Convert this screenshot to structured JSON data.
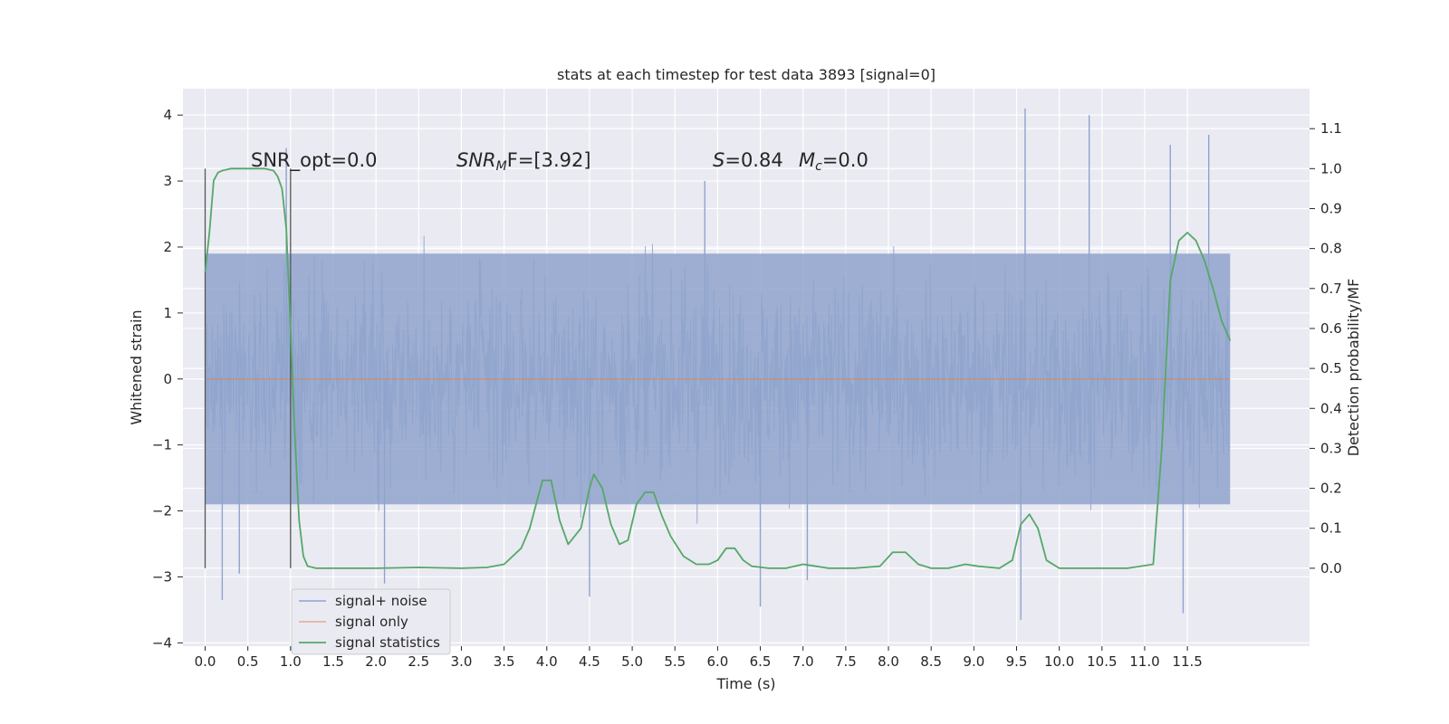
{
  "chart_data": {
    "type": "line",
    "title": "stats at each timestep for test data 3893 [signal=0]",
    "xlabel": "Time (s)",
    "ylabel_left": "Whitened strain",
    "ylabel_right": "Detection probability/MF",
    "xlim": [
      -0.26,
      12.93
    ],
    "ylim_left": [
      -4.05,
      4.4
    ],
    "ylim_right": [
      -0.195,
      1.2
    ],
    "x_ticks": [
      "0.0",
      "0.5",
      "1.0",
      "1.5",
      "2.0",
      "2.5",
      "3.0",
      "3.5",
      "4.0",
      "4.5",
      "5.0",
      "5.5",
      "6.0",
      "6.5",
      "7.0",
      "7.5",
      "8.0",
      "8.5",
      "9.0",
      "9.5",
      "10.0",
      "10.5",
      "11.0",
      "11.5"
    ],
    "y_ticks_left": [
      "−4",
      "−3",
      "−2",
      "−1",
      "0",
      "1",
      "2",
      "3",
      "4"
    ],
    "y_ticks_right": [
      "0.0",
      "0.1",
      "0.2",
      "0.3",
      "0.4",
      "0.5",
      "0.6",
      "0.7",
      "0.8",
      "0.9",
      "1.0",
      "1.1"
    ],
    "annotations": {
      "snr_opt": "SNR_opt=0.0",
      "snr_mf_main": "SNR",
      "snr_mf_sub": "M",
      "snr_mf_rest": "F=[3.92]",
      "s_main": "S",
      "s_rest": "=0.84",
      "mc_main": "M",
      "mc_sub": "c",
      "mc_rest": "=0.0"
    },
    "vlines_x": [
      0.0,
      1.0
    ],
    "grid": true,
    "legend": {
      "position": "lower-left",
      "entries": [
        {
          "label": "signal+ noise",
          "color": "#8fa3cd"
        },
        {
          "label": "signal only",
          "color": "#dd8452"
        },
        {
          "label": "signal statistics",
          "color": "#55a868"
        }
      ]
    },
    "series": [
      {
        "name": "signal+ noise",
        "axis": "left",
        "color": "#8fa3cd",
        "x_range": [
          0.0,
          12.0
        ],
        "band": {
          "upper_typical": 1.9,
          "lower_typical": -1.9,
          "max": 4.1,
          "min": -3.65
        },
        "spikes": [
          {
            "x": 0.2,
            "y": -3.35
          },
          {
            "x": 0.4,
            "y": -2.95
          },
          {
            "x": 0.95,
            "y": 3.5
          },
          {
            "x": 2.1,
            "y": -3.1
          },
          {
            "x": 4.5,
            "y": -3.3
          },
          {
            "x": 5.85,
            "y": 3.0
          },
          {
            "x": 6.5,
            "y": -3.45
          },
          {
            "x": 7.05,
            "y": -3.05
          },
          {
            "x": 9.55,
            "y": -3.65
          },
          {
            "x": 9.6,
            "y": 4.1
          },
          {
            "x": 10.35,
            "y": 4.0
          },
          {
            "x": 11.45,
            "y": -3.55
          },
          {
            "x": 11.3,
            "y": 3.55
          },
          {
            "x": 11.75,
            "y": 3.7
          }
        ]
      },
      {
        "name": "signal only",
        "axis": "left",
        "color": "#dd8452",
        "x": [
          0.0,
          12.0
        ],
        "y": [
          0.0,
          0.0
        ]
      },
      {
        "name": "signal statistics",
        "axis": "right",
        "color": "#55a868",
        "x": [
          0.0,
          0.05,
          0.1,
          0.15,
          0.2,
          0.3,
          0.5,
          0.7,
          0.8,
          0.85,
          0.9,
          0.95,
          1.0,
          1.05,
          1.1,
          1.15,
          1.2,
          1.3,
          1.5,
          2.0,
          2.5,
          3.0,
          3.3,
          3.5,
          3.7,
          3.8,
          3.9,
          3.95,
          4.05,
          4.15,
          4.25,
          4.4,
          4.5,
          4.55,
          4.65,
          4.75,
          4.85,
          4.95,
          5.05,
          5.15,
          5.25,
          5.35,
          5.45,
          5.6,
          5.75,
          5.9,
          6.0,
          6.1,
          6.2,
          6.3,
          6.4,
          6.6,
          6.8,
          7.0,
          7.15,
          7.3,
          7.6,
          7.9,
          8.05,
          8.2,
          8.35,
          8.5,
          8.7,
          8.9,
          9.05,
          9.3,
          9.45,
          9.55,
          9.65,
          9.75,
          9.85,
          10.0,
          10.2,
          10.5,
          10.8,
          11.1,
          11.2,
          11.3,
          11.4,
          11.5,
          11.6,
          11.7,
          11.8,
          11.9,
          12.0
        ],
        "y": [
          0.74,
          0.84,
          0.97,
          0.99,
          0.995,
          1.0,
          1.0,
          1.0,
          0.995,
          0.98,
          0.95,
          0.85,
          0.6,
          0.33,
          0.12,
          0.03,
          0.005,
          0.0,
          0.0,
          0.0,
          0.002,
          0.0,
          0.002,
          0.01,
          0.05,
          0.1,
          0.18,
          0.22,
          0.22,
          0.12,
          0.06,
          0.1,
          0.2,
          0.235,
          0.2,
          0.11,
          0.06,
          0.07,
          0.16,
          0.19,
          0.19,
          0.13,
          0.08,
          0.03,
          0.01,
          0.01,
          0.02,
          0.05,
          0.05,
          0.02,
          0.005,
          0.0,
          0.0,
          0.01,
          0.005,
          0.0,
          0.0,
          0.005,
          0.04,
          0.04,
          0.01,
          0.0,
          0.0,
          0.01,
          0.005,
          0.0,
          0.02,
          0.11,
          0.135,
          0.1,
          0.02,
          0.0,
          0.0,
          0.0,
          0.0,
          0.01,
          0.3,
          0.72,
          0.82,
          0.84,
          0.82,
          0.77,
          0.7,
          0.62,
          0.57
        ]
      }
    ]
  }
}
